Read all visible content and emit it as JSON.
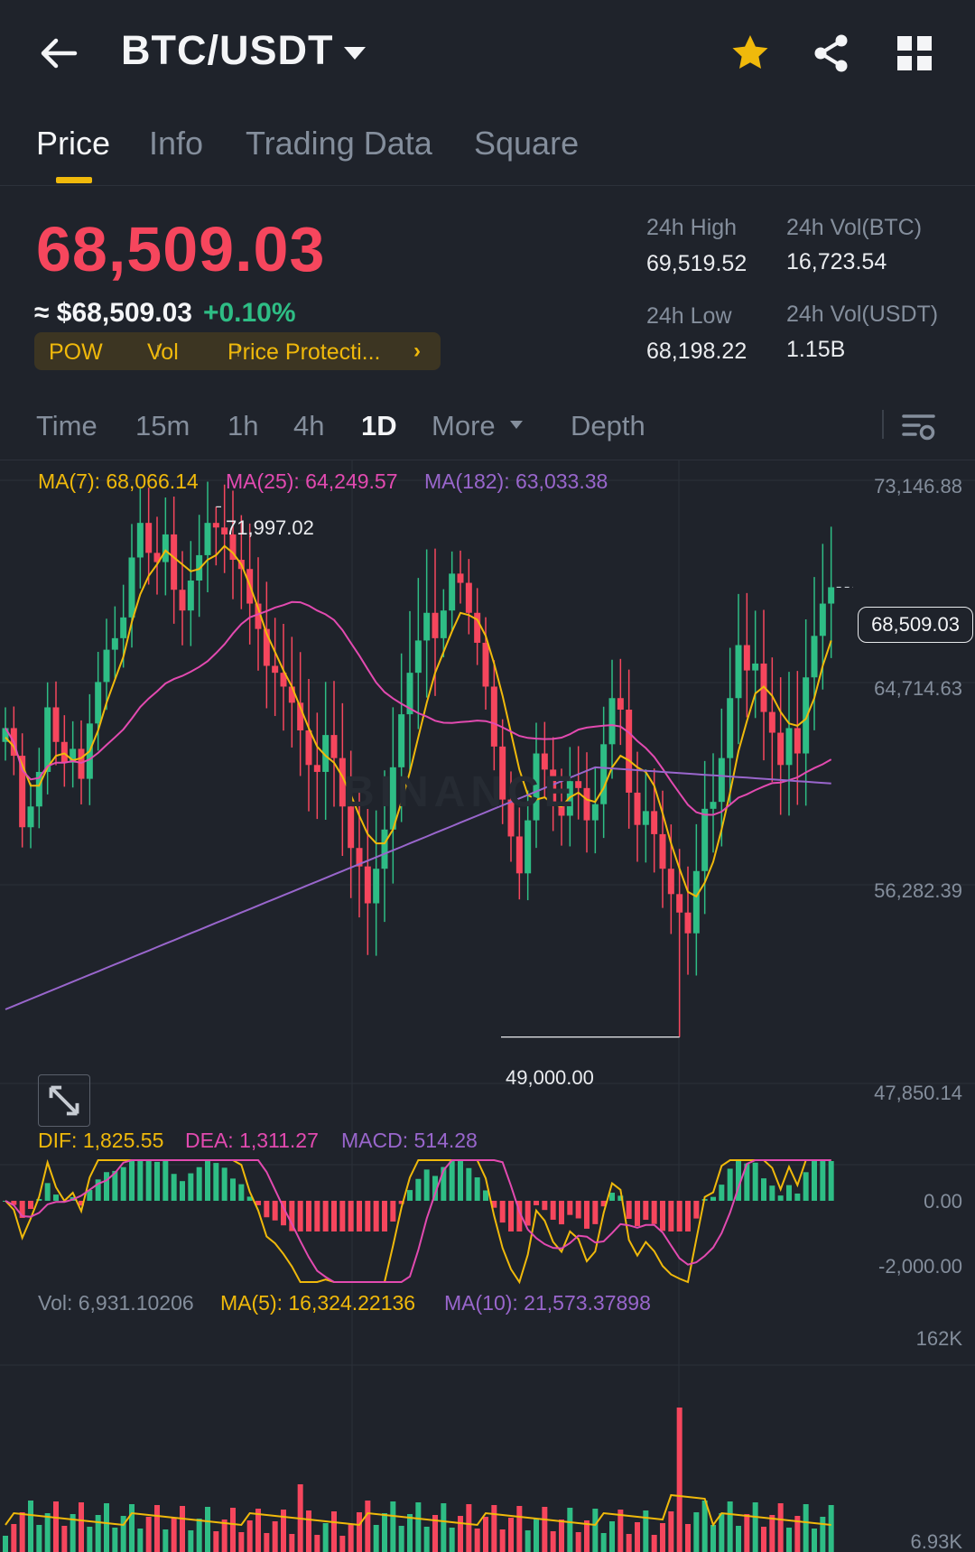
{
  "header": {
    "title": "BTC/USDT",
    "icons": {
      "back": "arrow-left-icon",
      "dropdown": "caret-down-icon",
      "favorite": "star-icon",
      "share": "share-icon",
      "grid": "grid-icon"
    },
    "favorite_color": "#f0b90b"
  },
  "tabs": [
    {
      "label": "Price",
      "active": true
    },
    {
      "label": "Info",
      "active": false
    },
    {
      "label": "Trading Data",
      "active": false
    },
    {
      "label": "Square",
      "active": false
    }
  ],
  "price": {
    "last": "68,509.03",
    "usd": "≈ $68,509.03",
    "change": "+0.10%",
    "last_color": "#f6465d",
    "change_color": "#2ebd85"
  },
  "tags": {
    "t1": "POW",
    "t2": "Vol",
    "t3": "Price Protecti...",
    "chevron": "›"
  },
  "stats": {
    "high_label": "24h High",
    "high": "69,519.52",
    "vol_btc_label": "24h Vol(BTC)",
    "vol_btc": "16,723.54",
    "low_label": "24h Low",
    "low": "68,198.22",
    "vol_usdt_label": "24h Vol(USDT)",
    "vol_usdt": "1.15B"
  },
  "intervals": {
    "items": [
      "Time",
      "15m",
      "1h",
      "4h",
      "1D"
    ],
    "active": "1D",
    "more": "More",
    "depth": "Depth",
    "settings_icon": "chart-settings-icon"
  },
  "main_legend": {
    "ma7": "MA(7): 68,066.14",
    "ma25": "MA(25): 64,249.57",
    "ma182": "MA(182): 63,033.38"
  },
  "price_axis": [
    "73,146.88",
    "64,714.63",
    "56,282.39",
    "47,850.14"
  ],
  "current_price_label": "68,509.03",
  "high_marker": "71,997.02",
  "low_marker": "49,000.00",
  "watermark": "BINANCE",
  "macd_legend": {
    "dif": "DIF: 1,825.55",
    "dea": "DEA: 1,311.27",
    "macd": "MACD: 514.28"
  },
  "macd_axis": [
    "0.00",
    "-2,000.00"
  ],
  "vol_legend": {
    "vol": "Vol: 6,931.10206",
    "ma5": "MA(5): 16,324.22136",
    "ma10": "MA(10): 21,573.37898"
  },
  "vol_axis": [
    "162K",
    "6.93K"
  ],
  "colors": {
    "up": "#2ebd85",
    "down": "#f6465d",
    "ma7": "#f0b90b",
    "ma25": "#e24ab0",
    "ma182": "#9966cc",
    "accent": "#f0b90b"
  },
  "chart_data": {
    "type": "candlestick",
    "interval": "1D",
    "ylim": [
      47850.14,
      73146.88
    ],
    "close": [
      62400,
      61200,
      58100,
      59000,
      60500,
      63300,
      61800,
      60900,
      61500,
      60200,
      62600,
      64400,
      65800,
      66300,
      67200,
      69800,
      71300,
      70000,
      69600,
      70800,
      68400,
      67500,
      68800,
      69900,
      71300,
      71100,
      70800,
      69700,
      69300,
      67800,
      66700,
      65100,
      64800,
      64200,
      63500,
      62300,
      60800,
      60500,
      62100,
      61100,
      59000,
      57200,
      56400,
      54800,
      56300,
      58000,
      60700,
      63000,
      64800,
      66200,
      67400,
      66300,
      67500,
      69100,
      68700,
      67400,
      66100,
      64200,
      61600,
      59300,
      57700,
      56100,
      58400,
      61300,
      60600,
      59200,
      58600,
      60100,
      59800,
      58400,
      59100,
      61700,
      63700,
      63200,
      59600,
      58200,
      58800,
      57800,
      56300,
      55200,
      54400,
      53500,
      56200,
      58900,
      59200,
      61100,
      63700,
      66000,
      64900,
      65200,
      63100,
      62200,
      60800,
      62400,
      61300,
      64600,
      66400,
      67800,
      68509
    ],
    "ma7": [
      62000,
      61600,
      60800,
      59900,
      59900,
      60700,
      61200,
      61300,
      61000,
      61100,
      61400,
      62300,
      63500,
      64500,
      65500,
      67000,
      68200,
      69000,
      69500,
      70100,
      69800,
      69500,
      69200,
      69300,
      69700,
      69900,
      70300,
      70000,
      69500,
      68600,
      67600,
      66500,
      65700,
      64900,
      64200,
      63300,
      62400,
      61600,
      61200,
      60900,
      60300,
      59500,
      58600,
      57800,
      57400,
      57400,
      58000,
      59200,
      60500,
      62000,
      63500,
      64800,
      65700,
      66600,
      67400,
      67300,
      67100,
      66400,
      65200,
      63800,
      62200,
      60600,
      59500,
      59300,
      59400,
      59100,
      59000,
      59400,
      59600,
      59300,
      59200,
      59800,
      60700,
      61200,
      61000,
      60700,
      60500,
      59900,
      58700,
      57400,
      56300,
      55300,
      55100,
      55700,
      56600,
      58000,
      59600,
      61400,
      62700,
      63900,
      64200,
      63800,
      63100,
      62600,
      62500,
      62800,
      63700,
      65100,
      66200
    ]
  }
}
